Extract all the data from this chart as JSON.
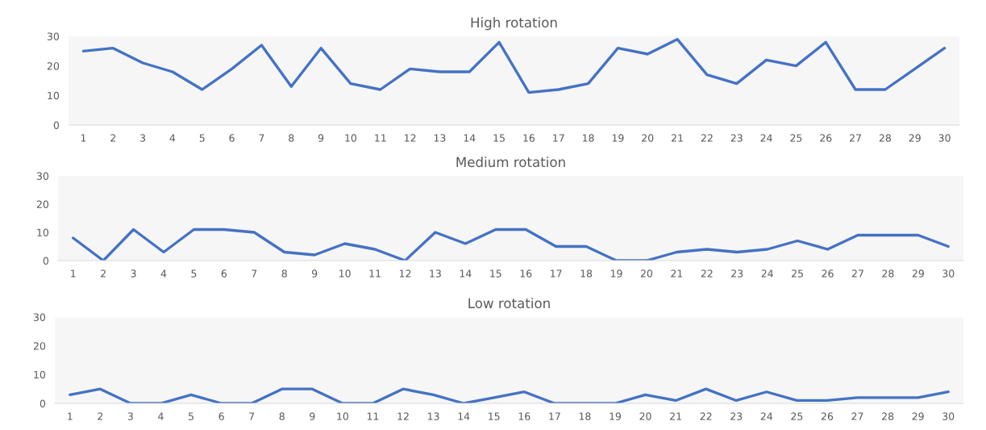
{
  "chart_data": [
    {
      "type": "line",
      "title": "High rotation",
      "categories": [
        "1",
        "2",
        "3",
        "4",
        "5",
        "6",
        "7",
        "8",
        "9",
        "10",
        "11",
        "12",
        "13",
        "14",
        "15",
        "16",
        "17",
        "18",
        "19",
        "20",
        "21",
        "22",
        "23",
        "24",
        "25",
        "26",
        "27",
        "28",
        "29",
        "30"
      ],
      "series": [
        {
          "color": "#4472c4",
          "values": [
            25,
            26,
            21,
            18,
            12,
            19,
            27,
            13,
            26,
            14,
            12,
            19,
            18,
            18,
            28,
            11,
            12,
            14,
            26,
            24,
            29,
            17,
            14,
            22,
            20,
            28,
            12,
            12,
            19,
            26
          ]
        }
      ],
      "ylim": [
        0,
        30
      ],
      "yticks": [
        0,
        10,
        20,
        30
      ],
      "grid": false,
      "marker": "none",
      "line_style": "solid"
    },
    {
      "type": "line",
      "title": "Medium rotation",
      "categories": [
        "1",
        "2",
        "3",
        "4",
        "5",
        "6",
        "7",
        "8",
        "9",
        "10",
        "11",
        "12",
        "13",
        "14",
        "15",
        "16",
        "17",
        "18",
        "19",
        "20",
        "21",
        "22",
        "23",
        "24",
        "25",
        "26",
        "27",
        "28",
        "29",
        "30"
      ],
      "series": [
        {
          "color": "#4472c4",
          "values": [
            8,
            0,
            11,
            3,
            11,
            11,
            10,
            3,
            2,
            6,
            4,
            0,
            10,
            6,
            11,
            11,
            5,
            5,
            0,
            0,
            3,
            4,
            3,
            4,
            7,
            4,
            9,
            9,
            9,
            5
          ]
        }
      ],
      "ylim": [
        0,
        30
      ],
      "yticks": [
        0,
        10,
        20,
        30
      ],
      "grid": false,
      "marker": "none",
      "line_style": "solid"
    },
    {
      "type": "line",
      "title": "Low rotation",
      "categories": [
        "1",
        "2",
        "3",
        "4",
        "5",
        "6",
        "7",
        "8",
        "9",
        "10",
        "11",
        "12",
        "13",
        "14",
        "15",
        "16",
        "17",
        "18",
        "19",
        "20",
        "21",
        "22",
        "23",
        "24",
        "25",
        "26",
        "27",
        "28",
        "29",
        "30"
      ],
      "series": [
        {
          "color": "#4472c4",
          "values": [
            3,
            5,
            0,
            0,
            3,
            0,
            0,
            5,
            5,
            0,
            0,
            5,
            3,
            0,
            2,
            4,
            0,
            0,
            0,
            3,
            1,
            5,
            1,
            4,
            1,
            1,
            2,
            2,
            2,
            4
          ]
        }
      ],
      "ylim": [
        0,
        30
      ],
      "yticks": [
        0,
        10,
        20,
        30
      ],
      "grid": false,
      "marker": "none",
      "line_style": "solid"
    }
  ]
}
